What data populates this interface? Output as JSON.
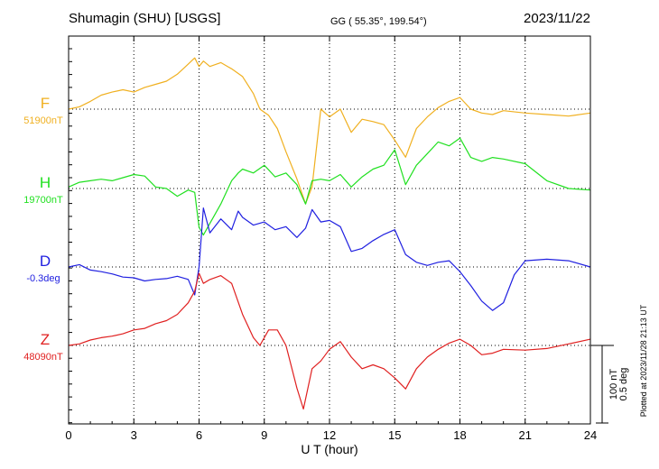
{
  "header": {
    "station": "Shumagin (SHU)  [USGS]",
    "coords": "GG ( 55.35°, 199.54°)",
    "date": "2023/11/22"
  },
  "footer": {
    "plotted": "Plotted at 2023/11/28 21:13 UT"
  },
  "scale": {
    "nt": "100 nT",
    "deg": "0.5 deg",
    "value_nt": 100
  },
  "chart_data": {
    "type": "line",
    "xlabel": "U T (hour)",
    "xlim": [
      0,
      24
    ],
    "xticks": [
      0,
      3,
      6,
      9,
      12,
      15,
      18,
      21,
      24
    ],
    "xtick_labels": [
      "0",
      "3",
      "6",
      "9",
      "12",
      "15",
      "18",
      "21",
      "24"
    ],
    "grid": true,
    "series": [
      {
        "name": "F",
        "baseline_label": "51900nT",
        "baseline": 51900,
        "unit": "nT",
        "color": "#f0b020",
        "x": [
          0,
          0.5,
          1,
          1.5,
          2,
          2.5,
          3,
          3.5,
          4,
          4.5,
          5,
          5.5,
          5.8,
          6,
          6.2,
          6.5,
          7,
          7.5,
          8,
          8.5,
          8.8,
          9.2,
          9.6,
          10,
          10.5,
          10.9,
          11.2,
          11.6,
          12,
          12.5,
          13,
          13.5,
          14,
          14.5,
          15,
          15.5,
          16,
          16.5,
          17,
          17.5,
          18,
          18.5,
          19,
          19.5,
          20,
          21,
          22,
          23,
          24
        ],
        "y": [
          51900,
          51903,
          51910,
          51918,
          51922,
          51925,
          51922,
          51928,
          51932,
          51936,
          51945,
          51958,
          51966,
          51955,
          51962,
          51955,
          51960,
          51952,
          51942,
          51920,
          51900,
          51892,
          51875,
          51845,
          51810,
          51778,
          51800,
          51900,
          51890,
          51900,
          51870,
          51887,
          51884,
          51880,
          51860,
          51838,
          51875,
          51890,
          51902,
          51910,
          51915,
          51900,
          51895,
          51893,
          51898,
          51895,
          51893,
          51891,
          51895
        ]
      },
      {
        "name": "H",
        "baseline_label": "19700nT",
        "baseline": 19700,
        "unit": "nT",
        "color": "#20e020",
        "x": [
          0,
          0.5,
          1,
          1.5,
          2,
          2.5,
          3,
          3.5,
          4,
          4.5,
          5,
          5.5,
          5.8,
          6,
          6.2,
          6.5,
          7,
          7.5,
          7.8,
          8,
          8.5,
          9,
          9.5,
          10,
          10.5,
          10.9,
          11.2,
          11.6,
          12,
          12.5,
          13,
          13.5,
          14,
          14.5,
          15,
          15.5,
          16,
          16.5,
          17,
          17.5,
          18,
          18.5,
          19,
          19.5,
          20,
          21,
          22,
          23,
          24
        ],
        "y": [
          19702,
          19708,
          19710,
          19712,
          19710,
          19714,
          19718,
          19716,
          19702,
          19700,
          19690,
          19698,
          19695,
          19650,
          19640,
          19655,
          19680,
          19710,
          19720,
          19725,
          19720,
          19730,
          19715,
          19720,
          19705,
          19680,
          19710,
          19712,
          19710,
          19718,
          19702,
          19715,
          19725,
          19730,
          19750,
          19705,
          19730,
          19745,
          19760,
          19755,
          19765,
          19740,
          19735,
          19740,
          19738,
          19732,
          19710,
          19700,
          19698
        ]
      },
      {
        "name": "D",
        "baseline_label": "-0.3deg",
        "baseline": -0.3,
        "unit": "deg",
        "color": "#2020e0",
        "x": [
          0,
          0.5,
          1,
          1.5,
          2,
          2.5,
          3,
          3.5,
          4,
          4.5,
          5,
          5.5,
          5.8,
          6,
          6.2,
          6.5,
          7,
          7.5,
          7.8,
          8,
          8.5,
          9,
          9.5,
          10,
          10.5,
          10.9,
          11.2,
          11.6,
          12,
          12.5,
          13,
          13.5,
          14,
          14.5,
          15,
          15.5,
          16,
          16.5,
          17,
          17.5,
          18,
          18.5,
          19,
          19.5,
          20,
          20.5,
          21,
          22,
          23,
          24
        ],
        "y": [
          -0.3,
          -0.285,
          -0.32,
          -0.33,
          -0.345,
          -0.365,
          -0.37,
          -0.39,
          -0.38,
          -0.375,
          -0.36,
          -0.38,
          -0.48,
          -0.3,
          0.08,
          -0.08,
          0.01,
          -0.06,
          0.06,
          0.02,
          -0.03,
          -0.01,
          -0.06,
          -0.04,
          -0.11,
          -0.05,
          0.07,
          -0.01,
          0.0,
          -0.04,
          -0.2,
          -0.18,
          -0.13,
          -0.09,
          -0.06,
          -0.22,
          -0.27,
          -0.29,
          -0.27,
          -0.26,
          -0.33,
          -0.42,
          -0.52,
          -0.58,
          -0.53,
          -0.35,
          -0.26,
          -0.25,
          -0.26,
          -0.3
        ]
      },
      {
        "name": "Z",
        "baseline_label": "48090nT",
        "baseline": 48090,
        "unit": "nT",
        "color": "#e02020",
        "x": [
          0,
          0.5,
          1,
          1.5,
          2,
          2.5,
          3,
          3.5,
          4,
          4.5,
          5,
          5.5,
          5.8,
          6,
          6.2,
          6.5,
          7,
          7.5,
          8,
          8.5,
          8.8,
          9.2,
          9.6,
          10,
          10.5,
          10.8,
          11.2,
          11.6,
          12,
          12.5,
          13,
          13.5,
          14,
          14.5,
          15,
          15.5,
          16,
          16.5,
          17,
          17.5,
          18,
          18.5,
          19,
          19.5,
          20,
          21,
          22,
          23,
          24
        ],
        "y": [
          48090,
          48092,
          48097,
          48100,
          48102,
          48105,
          48110,
          48112,
          48118,
          48122,
          48130,
          48145,
          48160,
          48183,
          48170,
          48175,
          48180,
          48170,
          48130,
          48100,
          48090,
          48110,
          48110,
          48090,
          48035,
          48008,
          48060,
          48070,
          48085,
          48095,
          48075,
          48060,
          48065,
          48060,
          48048,
          48034,
          48060,
          48075,
          48085,
          48093,
          48098,
          48090,
          48078,
          48080,
          48085,
          48084,
          48086,
          48092,
          48098
        ]
      }
    ]
  }
}
